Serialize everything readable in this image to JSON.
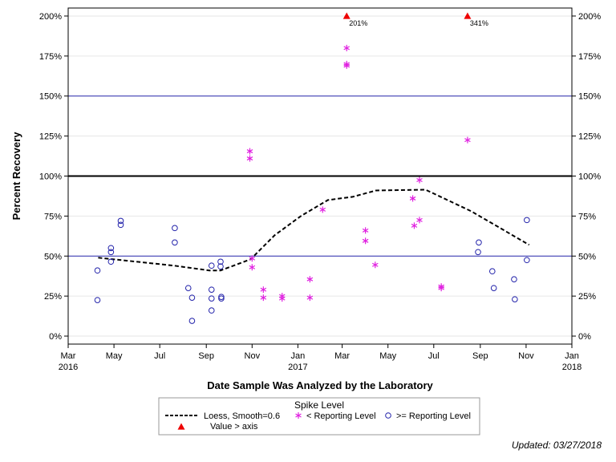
{
  "chart_data": {
    "type": "scatter",
    "xlabel": "Date Sample Was Analyzed by the Laboratory",
    "ylabel": "Percent Recovery",
    "x_range": [
      "2016-03-01",
      "2018-01-01"
    ],
    "y_range": [
      -0.05,
      2.05
    ],
    "x_ticks": [
      {
        "date": "2016-03-01",
        "label": "Mar",
        "year": "2016"
      },
      {
        "date": "2016-05-01",
        "label": "May",
        "year": ""
      },
      {
        "date": "2016-07-01",
        "label": "Jul",
        "year": ""
      },
      {
        "date": "2016-09-01",
        "label": "Sep",
        "year": ""
      },
      {
        "date": "2016-11-01",
        "label": "Nov",
        "year": ""
      },
      {
        "date": "2017-01-01",
        "label": "Jan",
        "year": "2017"
      },
      {
        "date": "2017-03-01",
        "label": "Mar",
        "year": ""
      },
      {
        "date": "2017-05-01",
        "label": "May",
        "year": ""
      },
      {
        "date": "2017-07-01",
        "label": "Jul",
        "year": ""
      },
      {
        "date": "2017-09-01",
        "label": "Sep",
        "year": ""
      },
      {
        "date": "2017-11-01",
        "label": "Nov",
        "year": ""
      },
      {
        "date": "2018-01-01",
        "label": "Jan",
        "year": "2018"
      }
    ],
    "y_ticks": [
      {
        "value": 0,
        "label": "0%"
      },
      {
        "value": 0.25,
        "label": "25%"
      },
      {
        "value": 0.5,
        "label": "50%"
      },
      {
        "value": 0.75,
        "label": "75%"
      },
      {
        "value": 1.0,
        "label": "100%"
      },
      {
        "value": 1.25,
        "label": "125%"
      },
      {
        "value": 1.5,
        "label": "150%"
      },
      {
        "value": 1.75,
        "label": "175%"
      },
      {
        "value": 2.0,
        "label": "200%"
      }
    ],
    "reference_lines": [
      {
        "value": 0.5,
        "color": "#2a2ab0",
        "width": 1
      },
      {
        "value": 1.0,
        "color": "#000000",
        "width": 2
      },
      {
        "value": 1.5,
        "color": "#2a2ab0",
        "width": 1
      }
    ],
    "grid": true,
    "series": [
      {
        "name": "Loess, Smooth=0.6",
        "kind": "line",
        "style": "dashed",
        "color": "#000000",
        "points": [
          {
            "x": "2016-04-10",
            "y": 0.49
          },
          {
            "x": "2016-05-20",
            "y": 0.47
          },
          {
            "x": "2016-07-20",
            "y": 0.44
          },
          {
            "x": "2016-09-05",
            "y": 0.41
          },
          {
            "x": "2016-09-20",
            "y": 0.41
          },
          {
            "x": "2016-10-30",
            "y": 0.48
          },
          {
            "x": "2016-12-01",
            "y": 0.63
          },
          {
            "x": "2017-01-05",
            "y": 0.75
          },
          {
            "x": "2017-02-10",
            "y": 0.85
          },
          {
            "x": "2017-03-15",
            "y": 0.87
          },
          {
            "x": "2017-04-15",
            "y": 0.91
          },
          {
            "x": "2017-06-20",
            "y": 0.915
          },
          {
            "x": "2017-08-20",
            "y": 0.78
          },
          {
            "x": "2017-11-05",
            "y": 0.57
          }
        ]
      },
      {
        "name": "< Reporting Level",
        "kind": "asterisk",
        "color": "#e020e0",
        "points": [
          {
            "x": "2016-10-29",
            "y": 1.155
          },
          {
            "x": "2016-10-29",
            "y": 1.11
          },
          {
            "x": "2016-11-01",
            "y": 0.485
          },
          {
            "x": "2016-11-01",
            "y": 0.43
          },
          {
            "x": "2016-11-16",
            "y": 0.29
          },
          {
            "x": "2016-11-16",
            "y": 0.24
          },
          {
            "x": "2016-12-11",
            "y": 0.25
          },
          {
            "x": "2016-12-11",
            "y": 0.235
          },
          {
            "x": "2017-01-17",
            "y": 0.355
          },
          {
            "x": "2017-01-17",
            "y": 0.24
          },
          {
            "x": "2017-02-03",
            "y": 0.79
          },
          {
            "x": "2017-03-07",
            "y": 1.8
          },
          {
            "x": "2017-03-07",
            "y": 1.7
          },
          {
            "x": "2017-03-07",
            "y": 1.69
          },
          {
            "x": "2017-04-01",
            "y": 0.66
          },
          {
            "x": "2017-04-01",
            "y": 0.595
          },
          {
            "x": "2017-04-14",
            "y": 0.445
          },
          {
            "x": "2017-06-03",
            "y": 0.86
          },
          {
            "x": "2017-06-05",
            "y": 0.69
          },
          {
            "x": "2017-06-12",
            "y": 0.975
          },
          {
            "x": "2017-06-12",
            "y": 0.725
          },
          {
            "x": "2017-07-11",
            "y": 0.31
          },
          {
            "x": "2017-07-11",
            "y": 0.3
          },
          {
            "x": "2017-08-15",
            "y": 1.225
          }
        ]
      },
      {
        "name": ">= Reporting Level",
        "kind": "circle",
        "color": "#2222aa",
        "points": [
          {
            "x": "2016-04-09",
            "y": 0.41
          },
          {
            "x": "2016-04-09",
            "y": 0.225
          },
          {
            "x": "2016-04-27",
            "y": 0.55
          },
          {
            "x": "2016-04-27",
            "y": 0.525
          },
          {
            "x": "2016-04-27",
            "y": 0.465
          },
          {
            "x": "2016-05-10",
            "y": 0.72
          },
          {
            "x": "2016-05-10",
            "y": 0.695
          },
          {
            "x": "2016-07-21",
            "y": 0.675
          },
          {
            "x": "2016-07-21",
            "y": 0.585
          },
          {
            "x": "2016-08-08",
            "y": 0.3
          },
          {
            "x": "2016-08-13",
            "y": 0.24
          },
          {
            "x": "2016-08-13",
            "y": 0.095
          },
          {
            "x": "2016-09-08",
            "y": 0.44
          },
          {
            "x": "2016-09-08",
            "y": 0.29
          },
          {
            "x": "2016-09-08",
            "y": 0.235
          },
          {
            "x": "2016-09-08",
            "y": 0.16
          },
          {
            "x": "2016-09-20",
            "y": 0.465
          },
          {
            "x": "2016-09-20",
            "y": 0.435
          },
          {
            "x": "2016-09-21",
            "y": 0.245
          },
          {
            "x": "2016-09-21",
            "y": 0.235
          },
          {
            "x": "2017-08-30",
            "y": 0.585
          },
          {
            "x": "2017-08-29",
            "y": 0.525
          },
          {
            "x": "2017-09-17",
            "y": 0.405
          },
          {
            "x": "2017-09-19",
            "y": 0.3
          },
          {
            "x": "2017-10-16",
            "y": 0.355
          },
          {
            "x": "2017-10-17",
            "y": 0.23
          },
          {
            "x": "2017-11-02",
            "y": 0.725
          },
          {
            "x": "2017-11-02",
            "y": 0.475
          }
        ]
      },
      {
        "name": "Value > axis",
        "kind": "triangle",
        "color": "#ee0000",
        "points": [
          {
            "x": "2017-03-07",
            "y": 2.0,
            "label": "201%"
          },
          {
            "x": "2017-08-15",
            "y": 2.0,
            "label": "341%"
          }
        ]
      }
    ],
    "legend": {
      "title": "Spike Level",
      "placement": "bottom",
      "entries": [
        {
          "symbol": "dashed-line",
          "label": "Loess, Smooth=0.6",
          "color": "#000000"
        },
        {
          "symbol": "asterisk",
          "label": "< Reporting Level",
          "color": "#e020e0"
        },
        {
          "symbol": "circle",
          "label": ">= Reporting Level",
          "color": "#2222aa"
        },
        {
          "symbol": "triangle",
          "label": "Value > axis",
          "color": "#ee0000"
        }
      ]
    }
  },
  "footer": {
    "updated": "Updated: 03/27/2018"
  }
}
